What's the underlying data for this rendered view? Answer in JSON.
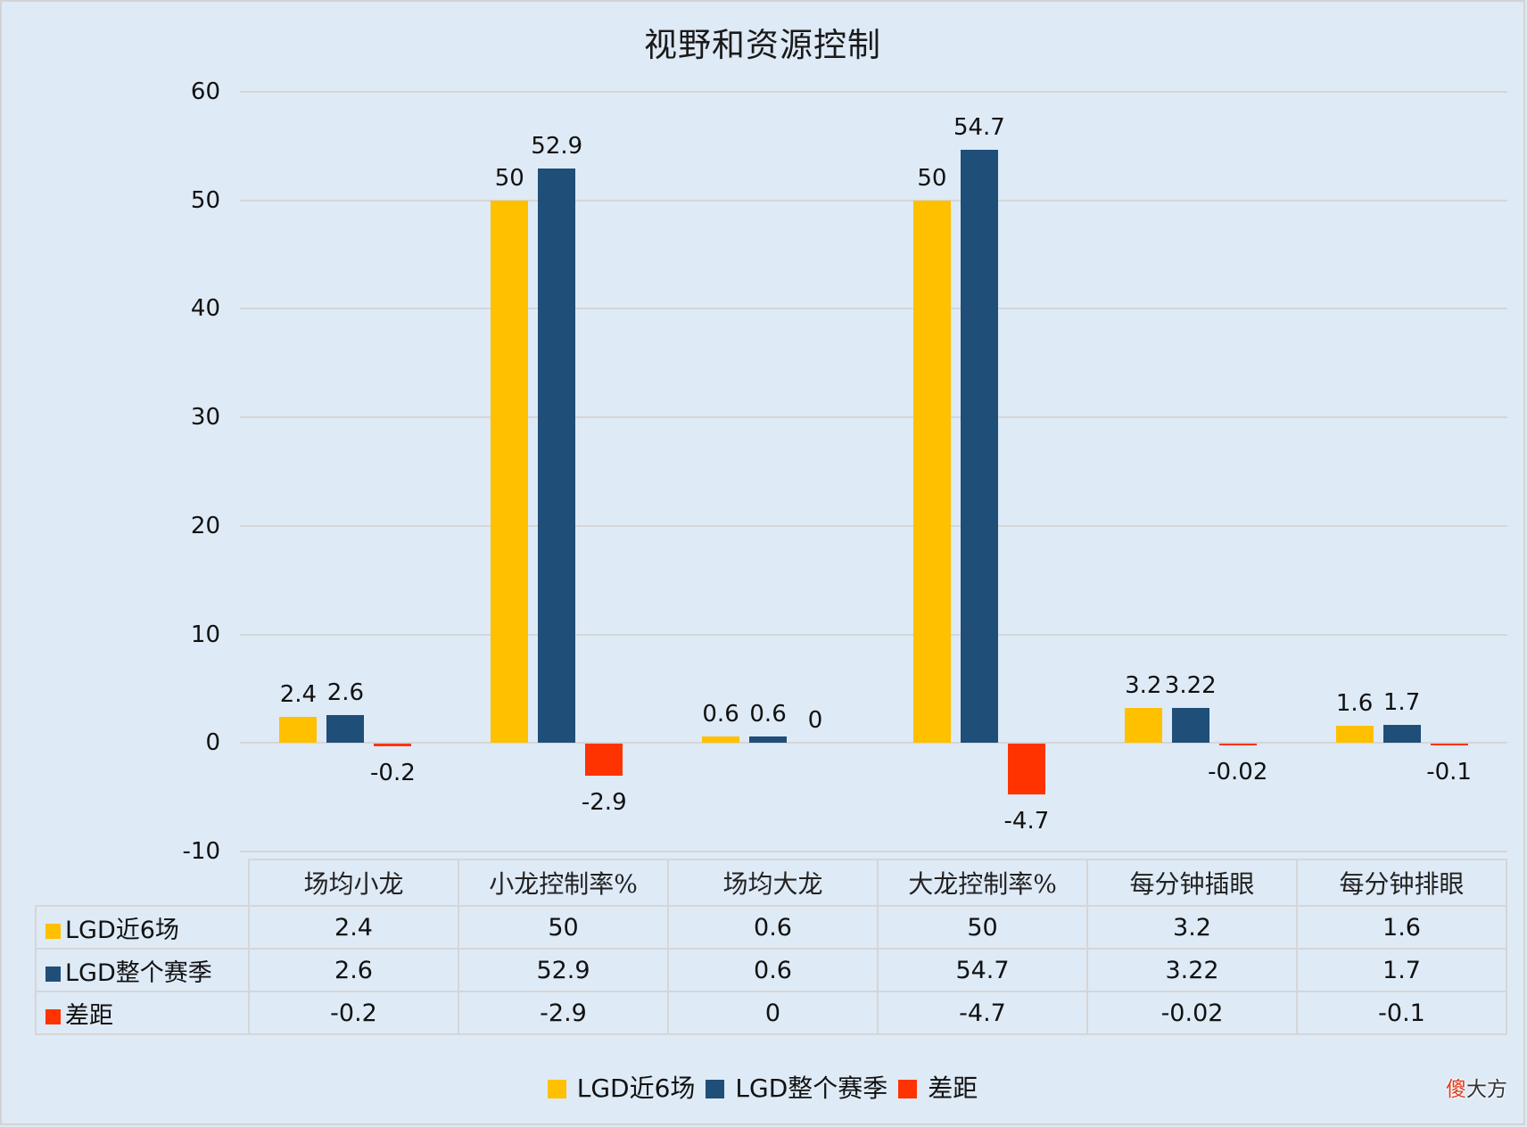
{
  "chart_data": {
    "type": "bar",
    "title": "视野和资源控制",
    "categories": [
      "场均小龙",
      "小龙控制率%",
      "场均大龙",
      "大龙控制率%",
      "每分钟插眼",
      "每分钟排眼"
    ],
    "series": [
      {
        "name": "LGD近6场",
        "color": "#ffc000",
        "values": [
          2.4,
          50,
          0.6,
          50,
          3.2,
          1.6
        ],
        "labels": [
          "2.4",
          "50",
          "0.6",
          "50",
          "3.2",
          "1.6"
        ]
      },
      {
        "name": "LGD整个赛季",
        "color": "#1f4e79",
        "values": [
          2.6,
          52.9,
          0.6,
          54.7,
          3.22,
          1.7
        ],
        "labels": [
          "2.6",
          "52.9",
          "0.6",
          "54.7",
          "3.22",
          "1.7"
        ]
      },
      {
        "name": "差距",
        "color": "#ff3300",
        "values": [
          -0.2,
          -2.9,
          0,
          -4.7,
          -0.02,
          -0.1
        ],
        "labels": [
          "-0.2",
          "-2.9",
          "0",
          "-4.7",
          "-0.02",
          "-0.1"
        ]
      }
    ],
    "xlabel": "",
    "ylabel": "",
    "ylim": [
      -10,
      60
    ],
    "yticks": [
      "60",
      "50",
      "40",
      "30",
      "20",
      "10",
      "0",
      "-10"
    ],
    "grid": true,
    "legend_position": "bottom",
    "data_table": true
  },
  "watermark": {
    "accent": "傻",
    "rest": "大方"
  }
}
